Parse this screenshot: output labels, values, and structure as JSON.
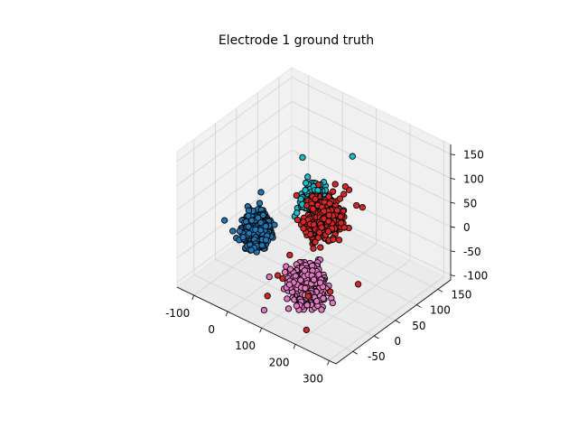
{
  "chart_data": {
    "type": "scatter",
    "projection": "3d",
    "title": "Electrode 1 ground truth",
    "xlabel": "",
    "ylabel": "",
    "zlabel": "",
    "xlim": [
      -150,
      320
    ],
    "ylim": [
      -90,
      180
    ],
    "zlim": [
      -110,
      170
    ],
    "x_ticks": [
      -100,
      0,
      100,
      200,
      300
    ],
    "y_ticks": [
      -50,
      0,
      50,
      100,
      150
    ],
    "z_ticks": [
      -100,
      -50,
      0,
      50,
      100,
      150
    ],
    "grid": true,
    "legend": "none",
    "marker_edge_color": "#000000",
    "series": [
      {
        "color": "#1f77b4",
        "cluster_center": [
          -40,
          10,
          -20
        ],
        "cluster_spread": [
          22,
          18,
          22
        ],
        "point_count": 360
      },
      {
        "color": "#17becf",
        "cluster_center": [
          30,
          90,
          20
        ],
        "cluster_spread": [
          20,
          18,
          20
        ],
        "point_count": 150
      },
      {
        "color": "#d62728",
        "cluster_center": [
          110,
          50,
          30
        ],
        "cluster_spread": [
          30,
          22,
          28
        ],
        "point_count": 320
      },
      {
        "color": "#e377c2",
        "cluster_center": [
          160,
          -30,
          -40
        ],
        "cluster_spread": [
          28,
          20,
          28
        ],
        "point_count": 420
      }
    ],
    "outliers": [
      {
        "color": "#d62728",
        "points": [
          [
            180,
            40,
            110
          ],
          [
            230,
            30,
            110
          ],
          [
            210,
            60,
            80
          ],
          [
            160,
            20,
            60
          ],
          [
            100,
            -40,
            -40
          ],
          [
            80,
            -60,
            -70
          ],
          [
            200,
            -60,
            -30
          ],
          [
            240,
            -40,
            -20
          ],
          [
            220,
            -80,
            -80
          ],
          [
            40,
            40,
            60
          ],
          [
            60,
            -20,
            -60
          ],
          [
            260,
            10,
            -30
          ],
          [
            120,
            100,
            60
          ],
          [
            20,
            40,
            -70
          ]
        ]
      },
      {
        "color": "#17becf",
        "points": [
          [
            -30,
            110,
            70
          ],
          [
            80,
            140,
            90
          ]
        ]
      },
      {
        "color": "#1f77b4",
        "points": [
          [
            -110,
            -10,
            -10
          ],
          [
            -90,
            60,
            10
          ]
        ]
      },
      {
        "color": "#e377c2",
        "points": [
          [
            120,
            -100,
            -60
          ],
          [
            260,
            -50,
            -30
          ],
          [
            60,
            -40,
            -50
          ]
        ]
      }
    ]
  }
}
